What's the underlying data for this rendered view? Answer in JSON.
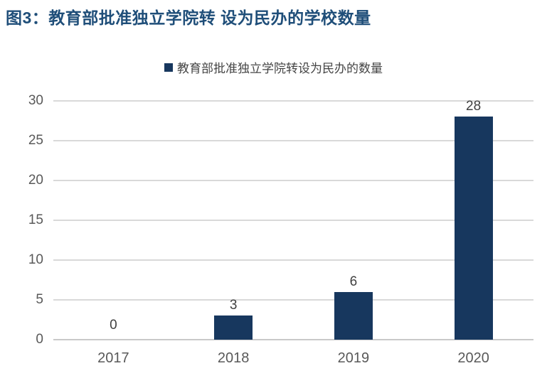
{
  "figure": {
    "title": "图3：教育部批准独立学院转 设为民办的学校数量"
  },
  "chart_data": {
    "type": "bar",
    "title": "图3：教育部批准独立学院转 设为民办的学校数量",
    "legend": "教育部批准独立学院转设为民办的数量",
    "legend_position": "top-center",
    "categories": [
      "2017",
      "2018",
      "2019",
      "2020"
    ],
    "values": [
      0,
      3,
      6,
      28
    ],
    "value_labels": [
      "0",
      "3",
      "6",
      "28"
    ],
    "yticks": [
      0,
      5,
      10,
      15,
      20,
      25,
      30
    ],
    "ylim": [
      0,
      30
    ],
    "xlabel": "",
    "ylabel": "",
    "grid": true,
    "colors": {
      "bar": "#17375E",
      "title": "#1F4E79",
      "legend_text": "#444444",
      "axis_tick_text": "#595959",
      "value_label_text": "#404040",
      "gridline": "#D9D9D9",
      "axis_line": "#C9C9C9"
    }
  }
}
